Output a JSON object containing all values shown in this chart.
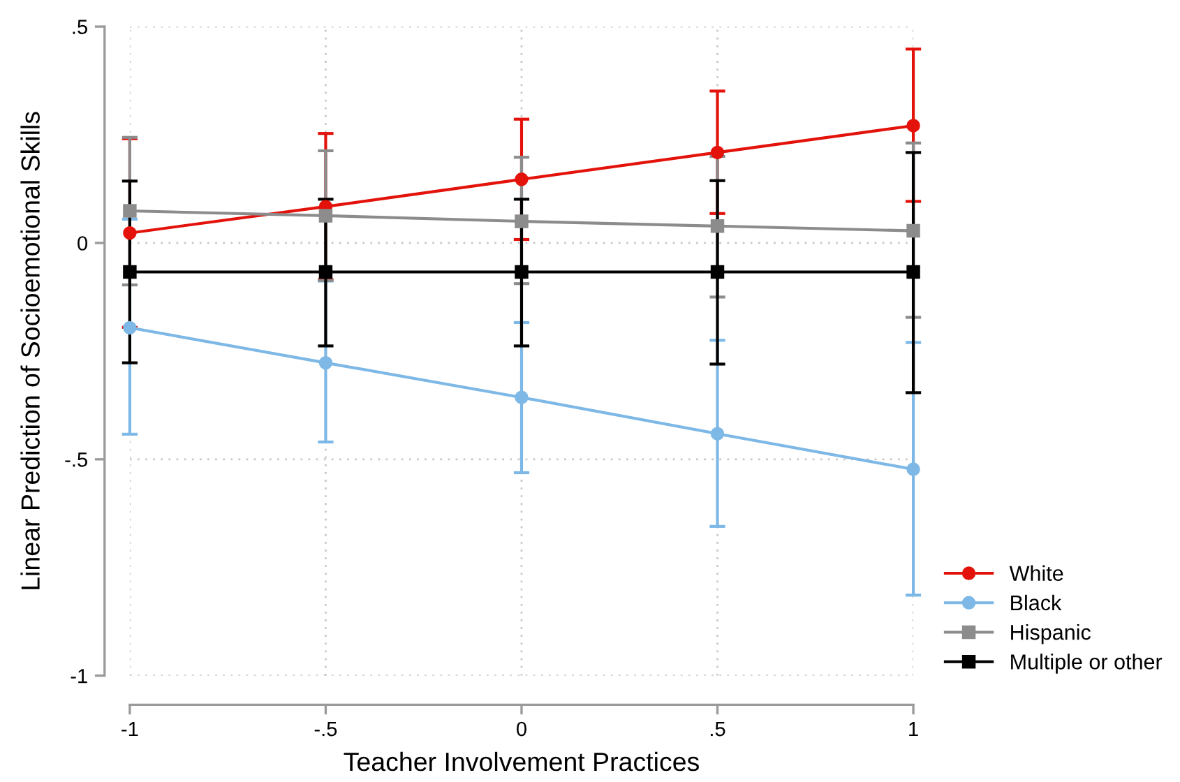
{
  "chart_data": {
    "type": "line",
    "xlabel": "Teacher Involvement Practices",
    "ylabel": "Linear Prediction of Socioemotional Skills",
    "x": [
      -1,
      -0.5,
      0,
      0.5,
      1
    ],
    "series": [
      {
        "name": "White",
        "color": "#e3120b",
        "marker": "circle",
        "values": [
          0.023,
          0.084,
          0.147,
          0.209,
          0.271
        ],
        "errors": [
          [
            -0.195,
            0.241
          ],
          [
            -0.085,
            0.253
          ],
          [
            0.008,
            0.286
          ],
          [
            0.068,
            0.351
          ],
          [
            0.096,
            0.448
          ]
        ]
      },
      {
        "name": "Black",
        "color": "#7db8e6",
        "marker": "circle",
        "values": [
          -0.196,
          -0.277,
          -0.357,
          -0.441,
          -0.523
        ],
        "errors": [
          [
            -0.442,
            0.055
          ],
          [
            -0.46,
            -0.088
          ],
          [
            -0.531,
            -0.184
          ],
          [
            -0.655,
            -0.225
          ],
          [
            -0.814,
            -0.23
          ]
        ]
      },
      {
        "name": "Hispanic",
        "color": "#8c8c8c",
        "marker": "square",
        "values": [
          0.074,
          0.063,
          0.05,
          0.039,
          0.028
        ],
        "errors": [
          [
            -0.097,
            0.244
          ],
          [
            -0.087,
            0.213
          ],
          [
            -0.094,
            0.198
          ],
          [
            -0.125,
            0.2
          ],
          [
            -0.172,
            0.231
          ]
        ]
      },
      {
        "name": "Multiple or other",
        "color": "#000000",
        "marker": "square",
        "values": [
          -0.067,
          -0.067,
          -0.067,
          -0.067,
          -0.067
        ],
        "errors": [
          [
            -0.277,
            0.143
          ],
          [
            -0.238,
            0.101
          ],
          [
            -0.238,
            0.101
          ],
          [
            -0.28,
            0.144
          ],
          [
            -0.346,
            0.209
          ]
        ]
      }
    ],
    "xlim": [
      -1,
      1
    ],
    "ylim": [
      -1,
      0.5
    ],
    "xticks": [
      -1,
      {
        "value": -0.5,
        "label": "-.5"
      },
      0,
      {
        "value": 0.5,
        "label": ".5"
      },
      1
    ],
    "yticks": [
      -1,
      {
        "value": -0.5,
        "label": "-.5"
      },
      0,
      {
        "value": 0.5,
        "label": ".5"
      }
    ],
    "grid": true,
    "legend": "bottom right",
    "line_style": "solid"
  }
}
